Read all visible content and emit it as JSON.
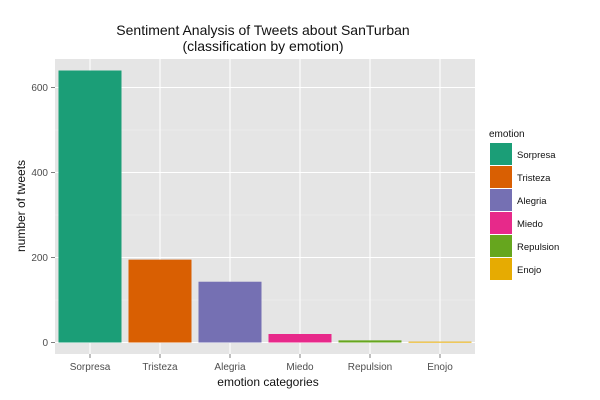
{
  "chart_data": {
    "type": "bar",
    "title": "Sentiment Analysis of Tweets about SanTurban",
    "subtitle": "(classification by emotion)",
    "xlabel": "emotion categories",
    "ylabel": "number of tweets",
    "categories": [
      "Sorpresa",
      "Tristeza",
      "Alegria",
      "Miedo",
      "Repulsion",
      "Enojo"
    ],
    "values": [
      640,
      195,
      143,
      20,
      5,
      2
    ],
    "colors": [
      "#1b9e77",
      "#d95f02",
      "#7570b3",
      "#e7298a",
      "#66a61e",
      "#e6ab02"
    ],
    "ylim": [
      0,
      700
    ],
    "yticks": [
      0,
      200,
      400,
      600
    ],
    "grid": true,
    "panel_background": "#e5e5e5",
    "legend": {
      "title": "emotion",
      "position": "right",
      "entries": [
        "Sorpresa",
        "Tristeza",
        "Alegria",
        "Miedo",
        "Repulsion",
        "Enojo"
      ]
    }
  }
}
